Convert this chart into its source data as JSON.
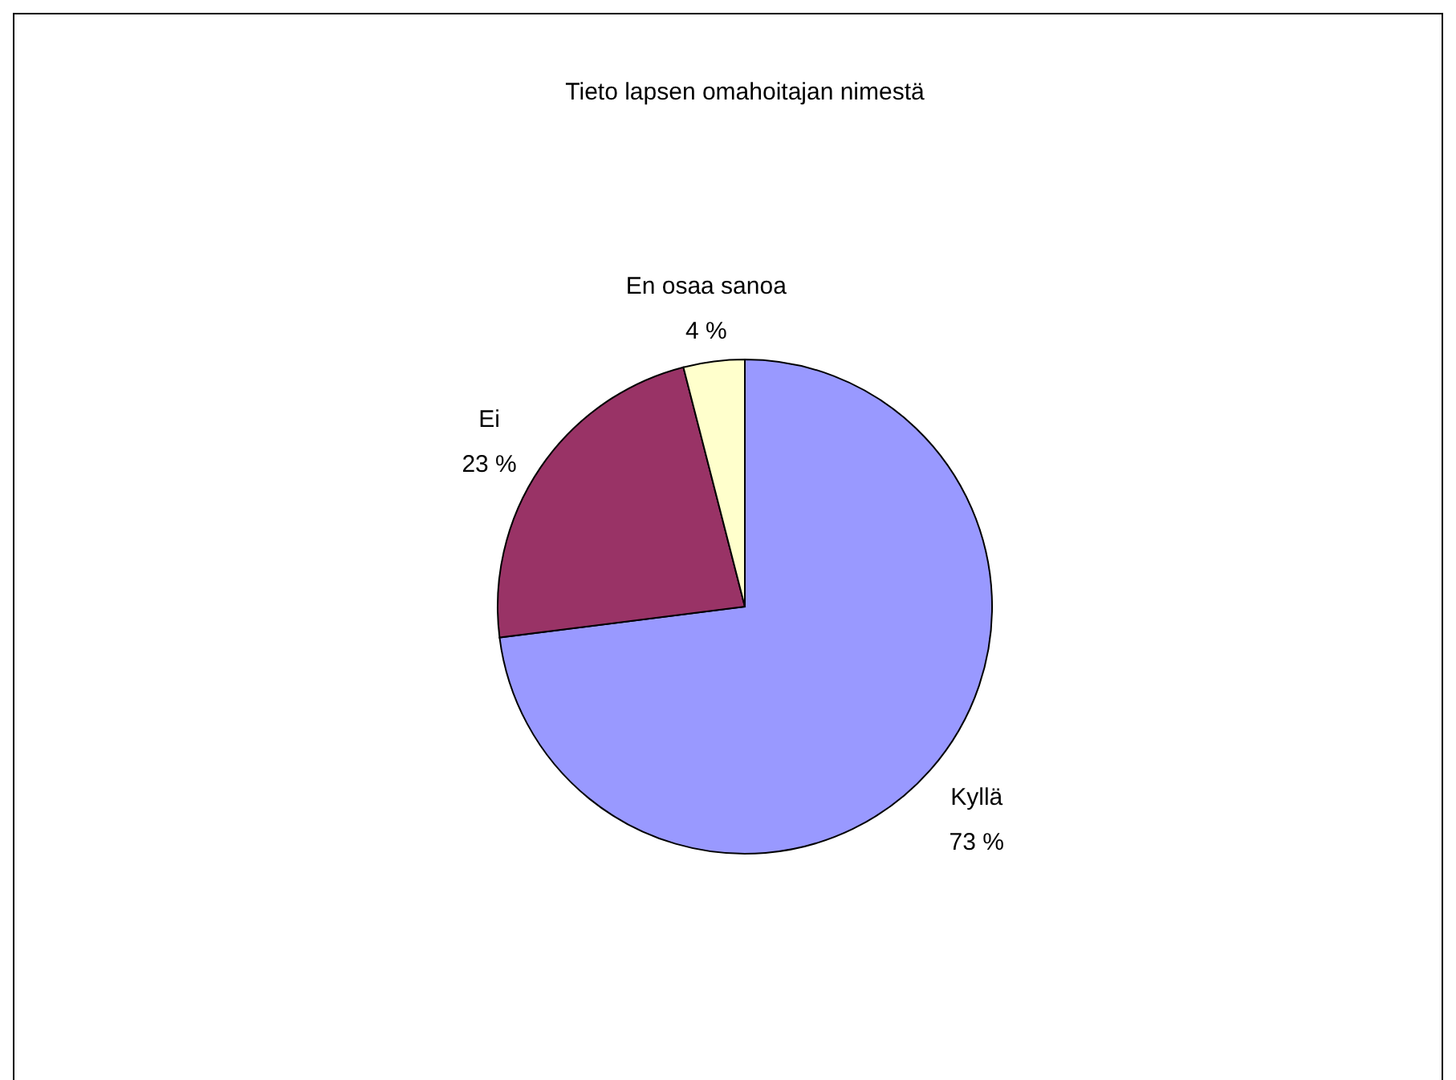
{
  "chart_data": {
    "type": "pie",
    "title": "Tieto lapsen omahoitajan nimestä",
    "categories": [
      "Kyllä",
      "Ei",
      "En osaa sanoa"
    ],
    "values": [
      73,
      23,
      4
    ],
    "colors": [
      "#9999ff",
      "#993366",
      "#ffffcc"
    ],
    "value_labels": [
      "73 %",
      "23 %",
      "4 %"
    ]
  }
}
